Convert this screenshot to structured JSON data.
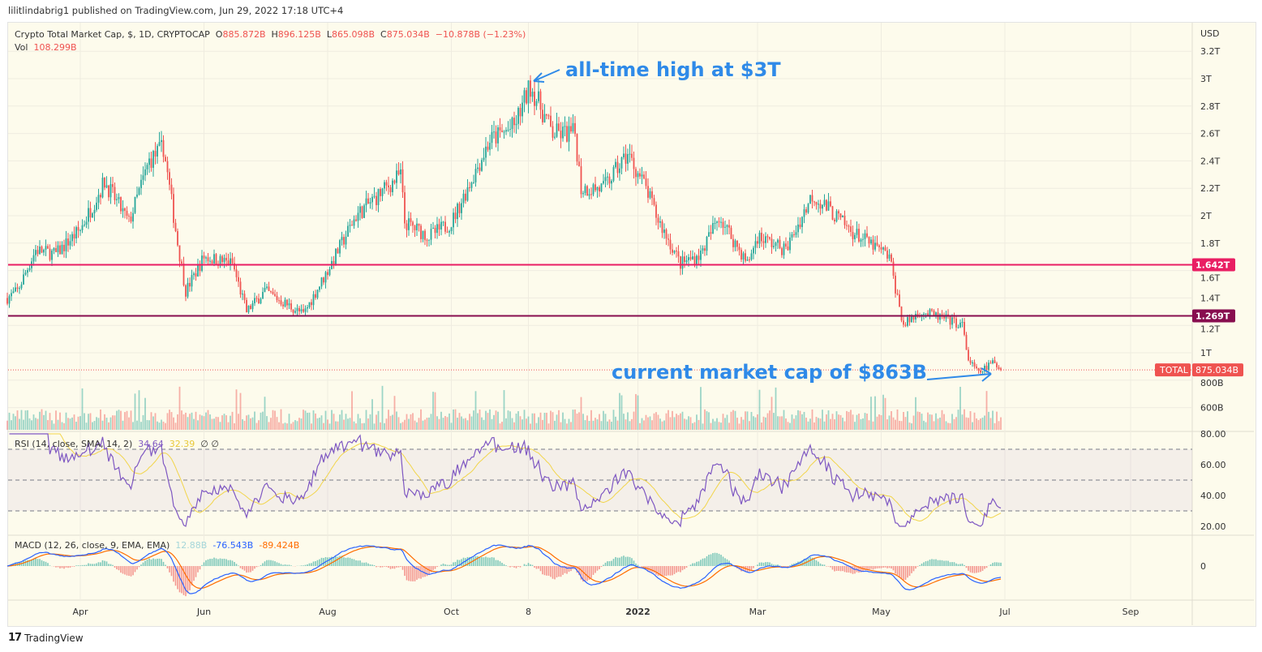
{
  "published": "lilitlindabrig1 published on TradingView.com, Jun 29, 2022 17:18 UTC+4",
  "header": {
    "symbol": "Crypto Total Market Cap, $, 1D, CRYPTOCAP",
    "o_label": "O",
    "o": "885.872B",
    "h_label": "H",
    "h": "896.125B",
    "l_label": "L",
    "l": "865.098B",
    "c_label": "C",
    "c": "875.034B",
    "change": "−10.878B (−1.23%)",
    "vol_label": "Vol",
    "vol": "108.299B"
  },
  "rsi_legend": {
    "label": "RSI (14, close, SMA, 14, 2)",
    "rsi": "34.64",
    "sma": "32.39",
    "extra": "∅ ∅"
  },
  "macd_legend": {
    "label": "MACD (12, 26, close, 9, EMA, EMA)",
    "hist": "12.88B",
    "macd": "-76.543B",
    "signal": "-89.424B"
  },
  "annotations": {
    "ath": "all-time high at $3T",
    "current": "current market cap of $863B"
  },
  "brand": "TradingView",
  "colors": {
    "up": "#26a69a",
    "down": "#ef5350",
    "line1": "#e91e63",
    "line2": "#880e4f",
    "annot": "#2f8ae8",
    "rsi": "#7e57c2",
    "rsi_sma": "#f2d54a",
    "macd": "#2962ff",
    "signal": "#ff6d00",
    "bg": "#fdfbec"
  },
  "chart_data": {
    "type": "candlestick",
    "title": "Crypto Total Market Cap, $, 1D, CRYPTOCAP",
    "currency": "USD",
    "y_ticks": [
      "3.2T",
      "3T",
      "2.8T",
      "2.6T",
      "2.4T",
      "2.2T",
      "2T",
      "1.8T",
      "1.6T",
      "1.4T",
      "1.2T",
      "1T",
      "800B",
      "600B"
    ],
    "y_tick_values_T": [
      3.2,
      3.0,
      2.8,
      2.6,
      2.4,
      2.2,
      2.0,
      1.8,
      1.6,
      1.4,
      1.2,
      1.0,
      0.8,
      0.6
    ],
    "x_ticks": [
      {
        "label": "Apr",
        "date": "2021-04-01"
      },
      {
        "label": "Jun",
        "date": "2021-06-01"
      },
      {
        "label": "Aug",
        "date": "2021-08-01"
      },
      {
        "label": "Oct",
        "date": "2021-10-01"
      },
      {
        "label": "8",
        "date": "2021-11-08"
      },
      {
        "label": "2022",
        "date": "2022-01-01"
      },
      {
        "label": "Mar",
        "date": "2022-03-01"
      },
      {
        "label": "May",
        "date": "2022-05-01"
      },
      {
        "label": "Jul",
        "date": "2022-07-01"
      },
      {
        "label": "Sep",
        "date": "2022-09-01"
      }
    ],
    "close_T": [
      [
        "2021-02-24",
        1.4
      ],
      [
        "2021-03-01",
        1.45
      ],
      [
        "2021-03-10",
        1.75
      ],
      [
        "2021-03-20",
        1.72
      ],
      [
        "2021-04-01",
        1.9
      ],
      [
        "2021-04-13",
        2.25
      ],
      [
        "2021-04-25",
        1.95
      ],
      [
        "2021-05-05",
        2.4
      ],
      [
        "2021-05-12",
        2.5
      ],
      [
        "2021-05-19",
        1.8
      ],
      [
        "2021-05-23",
        1.45
      ],
      [
        "2021-06-01",
        1.7
      ],
      [
        "2021-06-15",
        1.65
      ],
      [
        "2021-06-22",
        1.3
      ],
      [
        "2021-07-01",
        1.45
      ],
      [
        "2021-07-20",
        1.28
      ],
      [
        "2021-08-01",
        1.6
      ],
      [
        "2021-08-15",
        2.0
      ],
      [
        "2021-09-06",
        2.3
      ],
      [
        "2021-09-08",
        1.95
      ],
      [
        "2021-09-20",
        1.85
      ],
      [
        "2021-10-01",
        1.95
      ],
      [
        "2021-10-20",
        2.55
      ],
      [
        "2021-11-01",
        2.65
      ],
      [
        "2021-11-09",
        2.95
      ],
      [
        "2021-11-20",
        2.6
      ],
      [
        "2021-12-01",
        2.6
      ],
      [
        "2021-12-04",
        2.2
      ],
      [
        "2021-12-15",
        2.2
      ],
      [
        "2021-12-27",
        2.45
      ],
      [
        "2022-01-05",
        2.2
      ],
      [
        "2022-01-10",
        2.0
      ],
      [
        "2022-01-22",
        1.65
      ],
      [
        "2022-02-01",
        1.72
      ],
      [
        "2022-02-10",
        2.0
      ],
      [
        "2022-02-24",
        1.65
      ],
      [
        "2022-03-01",
        1.85
      ],
      [
        "2022-03-15",
        1.75
      ],
      [
        "2022-03-28",
        2.15
      ],
      [
        "2022-04-05",
        2.05
      ],
      [
        "2022-04-15",
        1.9
      ],
      [
        "2022-04-30",
        1.75
      ],
      [
        "2022-05-05",
        1.7
      ],
      [
        "2022-05-09",
        1.4
      ],
      [
        "2022-05-12",
        1.2
      ],
      [
        "2022-05-20",
        1.3
      ],
      [
        "2022-06-01",
        1.25
      ],
      [
        "2022-06-10",
        1.2
      ],
      [
        "2022-06-13",
        0.95
      ],
      [
        "2022-06-18",
        0.85
      ],
      [
        "2022-06-25",
        0.93
      ],
      [
        "2022-06-29",
        0.875
      ]
    ],
    "last_price": "875.034B",
    "last_label": "TOTAL",
    "horizontal_lines": [
      {
        "value": "1.642T",
        "v": 1.642
      },
      {
        "value": "1.269T",
        "v": 1.269
      }
    ],
    "rsi": {
      "ticks": [
        "80.00",
        "60.00",
        "40.00",
        "20.00"
      ],
      "upper": 70,
      "middle": 50,
      "lower": 30
    },
    "macd": {
      "ticks": [
        "0"
      ]
    }
  }
}
